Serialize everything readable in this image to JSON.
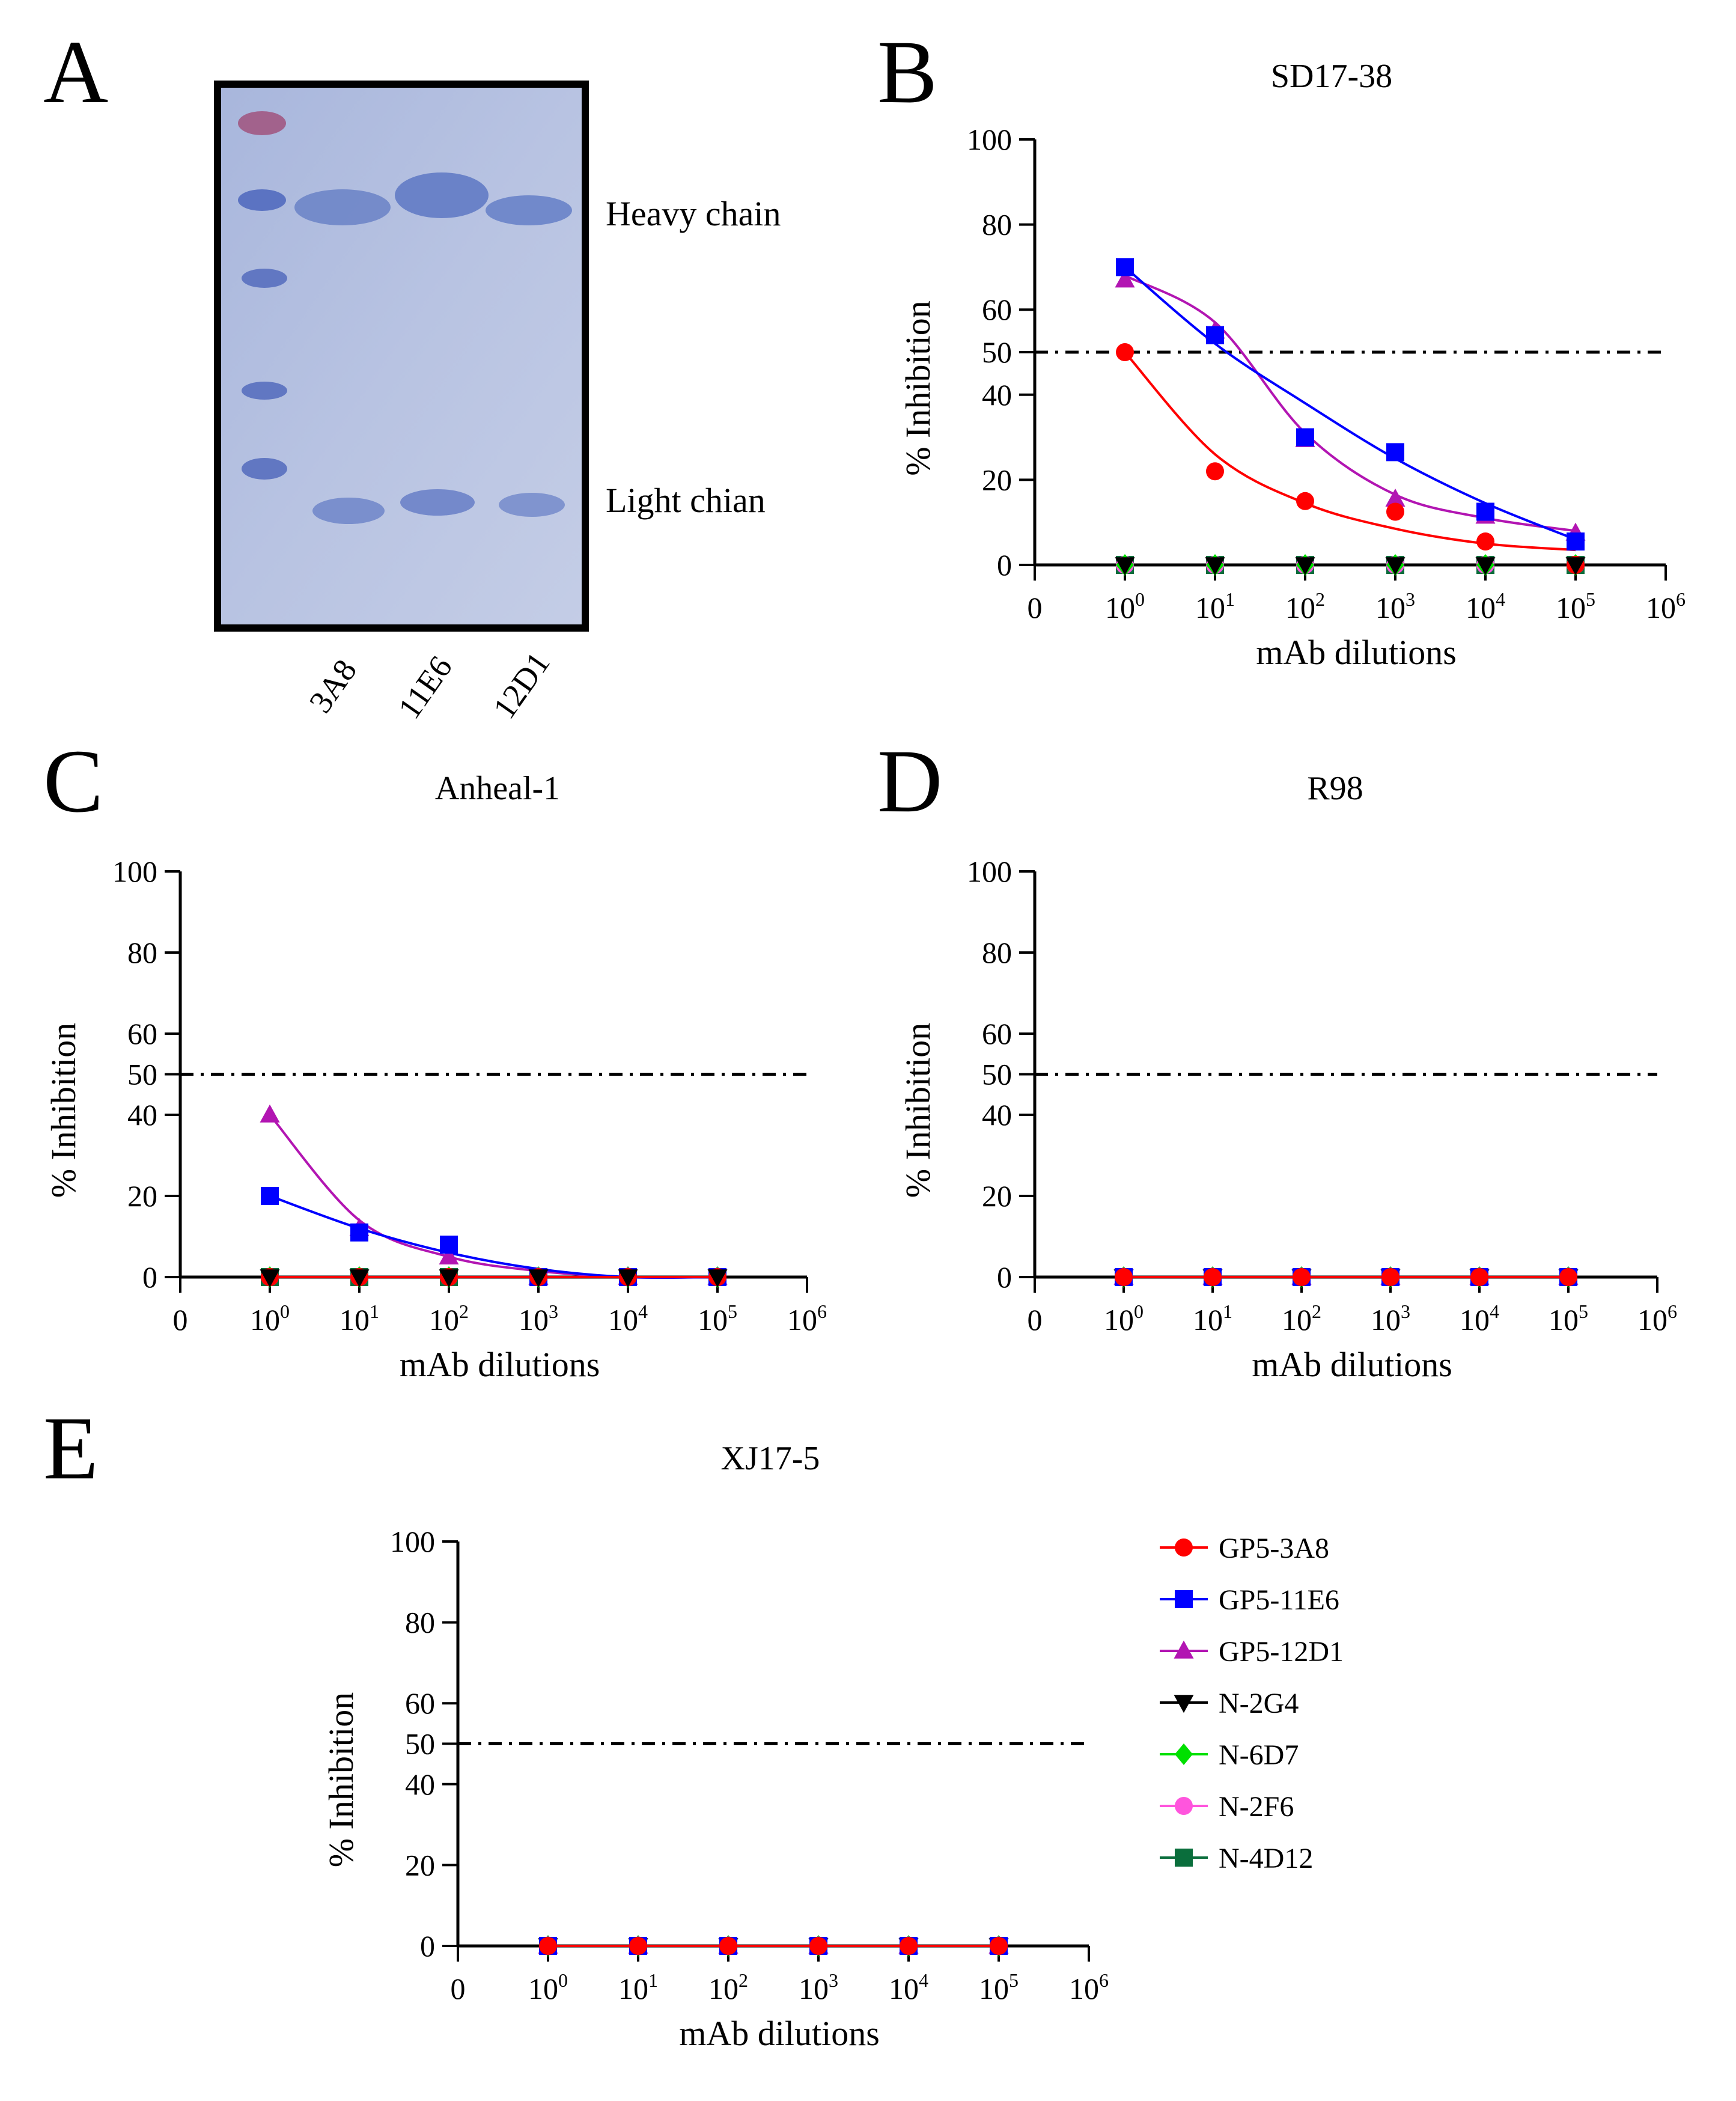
{
  "figure": {
    "panel_letters": [
      "A",
      "B",
      "C",
      "D",
      "E"
    ],
    "gel": {
      "band_labels": [
        "Heavy chain",
        "Light chian"
      ],
      "lane_labels": [
        "3A8",
        "11E6",
        "12D1"
      ],
      "colors": {
        "background": "#b2bedf",
        "band": "#6e85c8",
        "border": "#000000",
        "marker_top": "#b2557a"
      }
    }
  },
  "legend": {
    "entries": [
      {
        "name": "GP5-3A8",
        "color": "#ff0000",
        "marker": "circle"
      },
      {
        "name": "GP5-11E6",
        "color": "#0000ff",
        "marker": "square"
      },
      {
        "name": "GP5-12D1",
        "color": "#b215b2",
        "marker": "triangle-up"
      },
      {
        "name": "N-2G4",
        "color": "#000000",
        "marker": "triangle-down"
      },
      {
        "name": "N-6D7",
        "color": "#00e000",
        "marker": "diamond"
      },
      {
        "name": "N-2F6",
        "color": "#ff55dd",
        "marker": "circle"
      },
      {
        "name": "N-4D12",
        "color": "#0a6e3c",
        "marker": "square"
      }
    ]
  },
  "chart_data": [
    {
      "panel": "B",
      "type": "line",
      "title": "SD17-38",
      "xlabel": "mAb dilutions",
      "ylabel": "% Inhibition",
      "x_scale": "log10",
      "x_ticks": [
        "0",
        "10^0",
        "10^1",
        "10^2",
        "10^3",
        "10^4",
        "10^5",
        "10^6"
      ],
      "y_ticks": [
        0,
        20,
        40,
        50,
        60,
        80,
        100
      ],
      "ylim": [
        0,
        100
      ],
      "reference_line": 50,
      "x": [
        0,
        1,
        2,
        3,
        4,
        5
      ],
      "series": [
        {
          "name": "GP5-3A8",
          "values": [
            50,
            22,
            15,
            12.5,
            5.5,
            0
          ],
          "fit": [
            50,
            26,
            14.5,
            8.5,
            5,
            3.5
          ]
        },
        {
          "name": "GP5-11E6",
          "values": [
            70,
            54,
            30,
            26.5,
            12.5,
            5.5
          ],
          "fit": [
            70,
            52,
            38,
            25,
            14.5,
            6
          ]
        },
        {
          "name": "GP5-12D1",
          "values": [
            67,
            55,
            29.5,
            15.5,
            11.5,
            7.5
          ],
          "fit": [
            68,
            57,
            31,
            16.5,
            11,
            8
          ]
        },
        {
          "name": "N-2G4",
          "values": [
            0,
            0,
            0,
            0,
            0,
            0
          ]
        },
        {
          "name": "N-6D7",
          "values": [
            0,
            0,
            0,
            0,
            0,
            0
          ]
        },
        {
          "name": "N-2F6",
          "values": [
            0,
            0,
            0,
            0,
            0,
            0
          ]
        },
        {
          "name": "N-4D12",
          "values": [
            0,
            0,
            0,
            0,
            0,
            0
          ]
        }
      ]
    },
    {
      "panel": "C",
      "type": "line",
      "title": "Anheal-1",
      "xlabel": "mAb dilutions",
      "ylabel": "% Inhibition",
      "x_scale": "log10",
      "x_ticks": [
        "0",
        "10^0",
        "10^1",
        "10^2",
        "10^3",
        "10^4",
        "10^5",
        "10^6"
      ],
      "y_ticks": [
        0,
        20,
        40,
        50,
        60,
        80,
        100
      ],
      "ylim": [
        0,
        100
      ],
      "reference_line": 50,
      "x": [
        0,
        1,
        2,
        3,
        4,
        5
      ],
      "series": [
        {
          "name": "GP5-3A8",
          "values": [
            0,
            0,
            0,
            0,
            0,
            0
          ]
        },
        {
          "name": "GP5-11E6",
          "values": [
            20,
            11,
            8,
            0,
            0,
            0
          ],
          "fit": [
            20,
            12,
            6,
            2,
            0,
            0
          ]
        },
        {
          "name": "GP5-12D1",
          "values": [
            40,
            12,
            5,
            0,
            0,
            0
          ],
          "fit": [
            40,
            14,
            5,
            1.5,
            0,
            0
          ]
        },
        {
          "name": "N-2G4",
          "values": [
            0,
            0,
            0,
            0,
            0,
            0
          ]
        },
        {
          "name": "N-6D7",
          "values": [
            0,
            0,
            0,
            0,
            0,
            0
          ]
        },
        {
          "name": "N-2F6",
          "values": [
            0,
            0,
            0,
            0,
            0,
            0
          ]
        },
        {
          "name": "N-4D12",
          "values": [
            0,
            0,
            0,
            0,
            0,
            0
          ]
        }
      ]
    },
    {
      "panel": "D",
      "type": "line",
      "title": "R98",
      "xlabel": "mAb dilutions",
      "ylabel": "% Inhibition",
      "x_scale": "log10",
      "x_ticks": [
        "0",
        "10^0",
        "10^1",
        "10^2",
        "10^3",
        "10^4",
        "10^5",
        "10^6"
      ],
      "y_ticks": [
        0,
        20,
        40,
        50,
        60,
        80,
        100
      ],
      "ylim": [
        0,
        100
      ],
      "reference_line": 50,
      "x": [
        0,
        1,
        2,
        3,
        4,
        5
      ],
      "series": [
        {
          "name": "GP5-3A8",
          "values": [
            0,
            0,
            0,
            0,
            0,
            0
          ]
        },
        {
          "name": "GP5-11E6",
          "values": [
            0,
            0,
            0,
            0,
            0,
            0
          ]
        },
        {
          "name": "GP5-12D1",
          "values": [
            0,
            0,
            0,
            0,
            0,
            0
          ]
        },
        {
          "name": "N-2G4",
          "values": [
            0,
            0,
            0,
            0,
            0,
            0
          ]
        },
        {
          "name": "N-6D7",
          "values": [
            0,
            0,
            0,
            0,
            0,
            0
          ]
        },
        {
          "name": "N-2F6",
          "values": [
            0,
            0,
            0,
            0,
            0,
            0
          ]
        },
        {
          "name": "N-4D12",
          "values": [
            0,
            0,
            0,
            0,
            0,
            0
          ]
        }
      ]
    },
    {
      "panel": "E",
      "type": "line",
      "title": "XJ17-5",
      "xlabel": "mAb dilutions",
      "ylabel": "% Inhibition",
      "x_scale": "log10",
      "x_ticks": [
        "0",
        "10^0",
        "10^1",
        "10^2",
        "10^3",
        "10^4",
        "10^5",
        "10^6"
      ],
      "y_ticks": [
        0,
        20,
        40,
        50,
        60,
        80,
        100
      ],
      "ylim": [
        0,
        100
      ],
      "reference_line": 50,
      "x": [
        0,
        1,
        2,
        3,
        4,
        5
      ],
      "series": [
        {
          "name": "GP5-3A8",
          "values": [
            0,
            0,
            0,
            0,
            0,
            0
          ]
        },
        {
          "name": "GP5-11E6",
          "values": [
            0,
            0,
            0,
            0,
            0,
            0
          ]
        },
        {
          "name": "GP5-12D1",
          "values": [
            0,
            0,
            0,
            0,
            0,
            0
          ]
        },
        {
          "name": "N-2G4",
          "values": [
            0,
            0,
            0,
            0,
            0,
            0
          ]
        },
        {
          "name": "N-6D7",
          "values": [
            0,
            0,
            0,
            0,
            0,
            0
          ]
        },
        {
          "name": "N-2F6",
          "values": [
            0,
            0,
            0,
            0,
            0,
            0
          ]
        },
        {
          "name": "N-4D12",
          "values": [
            0,
            0,
            0,
            0,
            0,
            0
          ]
        }
      ]
    }
  ]
}
